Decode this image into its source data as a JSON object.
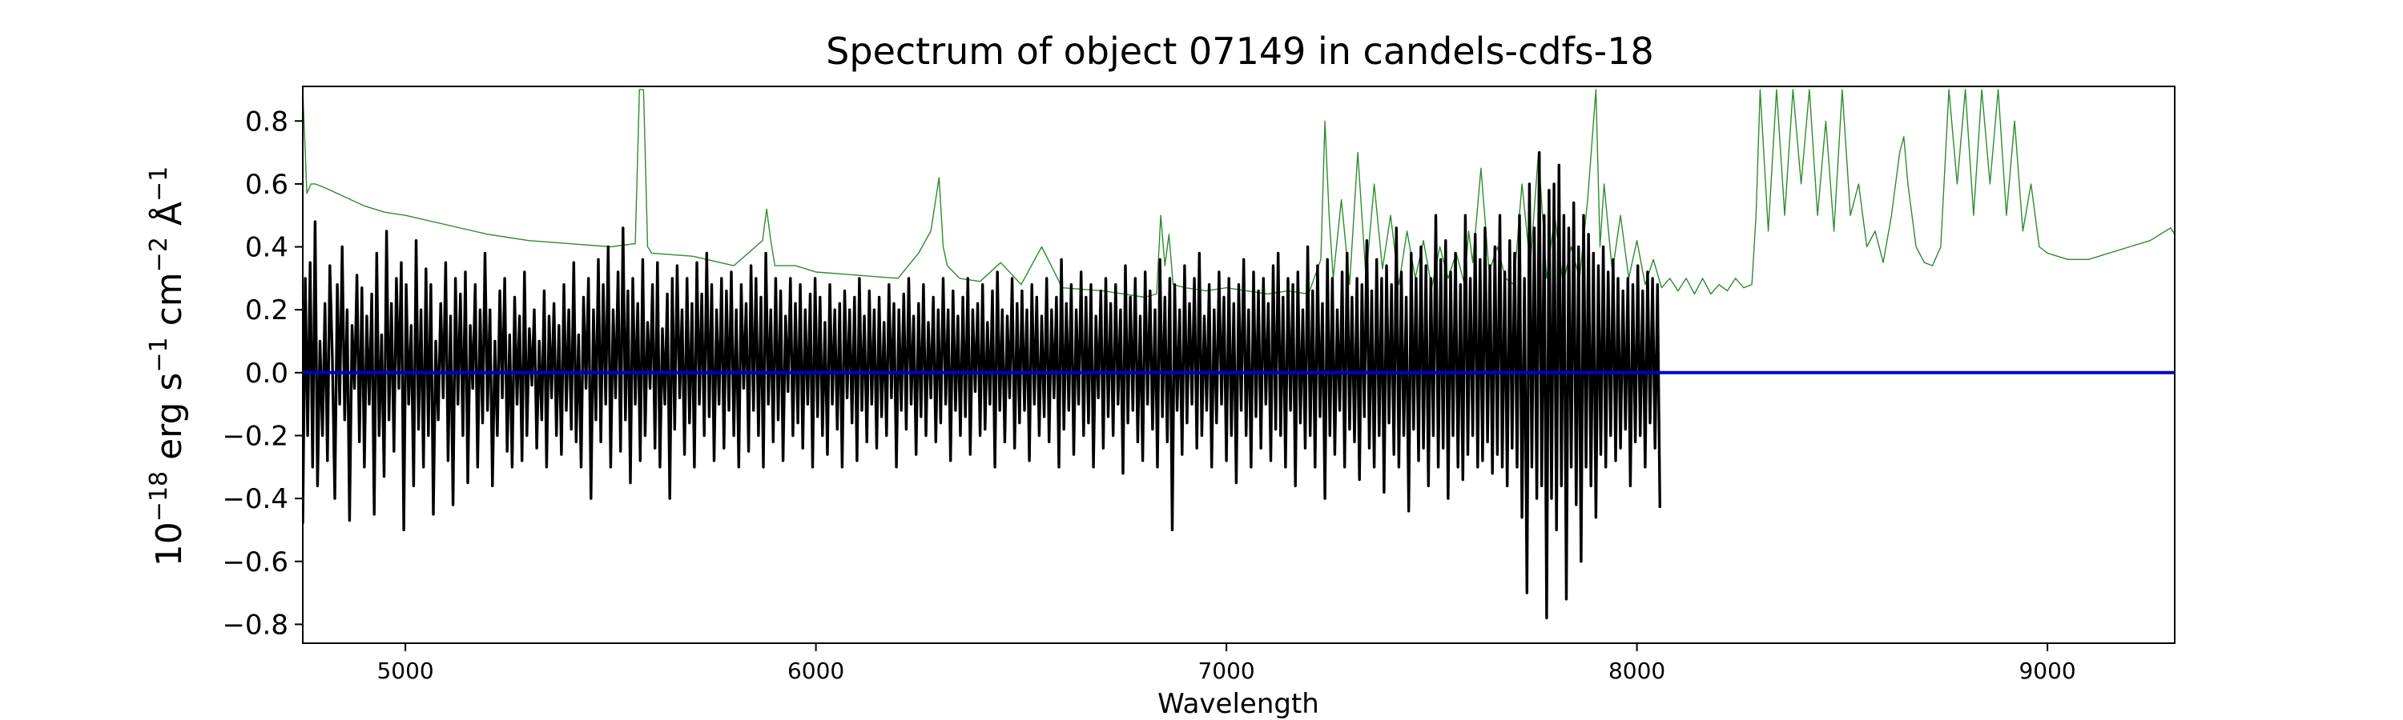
{
  "chart_data": {
    "type": "line",
    "title": "Spectrum of object 07149 in candels-cdfs-18",
    "xlabel": "Wavelength",
    "ylabel": {
      "base": "10",
      "exp": "−18",
      "unit1": " erg s",
      "unit1_exp": "−1",
      "unit2": " cm",
      "unit2_exp": "−2",
      "unit3": " Å",
      "unit3_exp": "−1"
    },
    "xlim": [
      4750,
      9310
    ],
    "ylim": [
      -0.86,
      0.91
    ],
    "x_ticks": [
      5000,
      6000,
      7000,
      8000,
      9000
    ],
    "x_tick_labels": [
      "5000",
      "6000",
      "7000",
      "8000",
      "9000"
    ],
    "y_ticks": [
      -0.8,
      -0.6,
      -0.4,
      -0.2,
      0.0,
      0.2,
      0.4,
      0.6,
      0.8
    ],
    "y_tick_labels": [
      "−0.8",
      "−0.6",
      "−0.4",
      "−0.2",
      "0.0",
      "0.2",
      "0.4",
      "0.6",
      "0.8"
    ],
    "grid": false,
    "colors": {
      "flux": "#000000",
      "error": "#2e8b2e",
      "zero": "#0000cc"
    },
    "series": [
      {
        "role": "flux",
        "x_start": 4750,
        "x_step": 6,
        "values": [
          -0.48,
          0.3,
          -0.2,
          0.35,
          -0.3,
          0.48,
          -0.36,
          0.1,
          -0.2,
          0.22,
          -0.28,
          0.34,
          0.05,
          -0.4,
          0.28,
          -0.1,
          0.4,
          -0.15,
          0.2,
          -0.47,
          0.15,
          -0.05,
          0.31,
          -0.22,
          0.27,
          -0.3,
          0.18,
          -0.1,
          0.25,
          -0.45,
          0.38,
          -0.2,
          0.12,
          -0.33,
          0.45,
          -0.15,
          0.22,
          -0.25,
          0.3,
          -0.05,
          0.35,
          -0.5,
          0.28,
          -0.1,
          0.15,
          -0.36,
          0.42,
          -0.18,
          0.2,
          -0.3,
          0.33,
          -0.2,
          0.28,
          -0.45,
          0.1,
          -0.15,
          0.22,
          -0.08,
          0.35,
          -0.28,
          0.18,
          -0.42,
          0.3,
          -0.1,
          0.25,
          -0.2,
          0.32,
          -0.35,
          0.15,
          -0.05,
          0.28,
          -0.3,
          0.2,
          -0.16,
          0.38,
          -0.12,
          0.2,
          -0.36,
          0.1,
          -0.2,
          0.26,
          -0.08,
          0.3,
          -0.25,
          0.12,
          -0.3,
          0.24,
          -0.1,
          0.18,
          -0.28,
          0.32,
          -0.2,
          0.14,
          -0.04,
          0.2,
          -0.24,
          0.1,
          -0.15,
          0.26,
          -0.3,
          0.18,
          -0.08,
          0.22,
          -0.2,
          0.15,
          -0.26,
          0.28,
          -0.12,
          0.2,
          -0.18,
          0.35,
          -0.22,
          0.12,
          -0.3,
          0.24,
          -0.05,
          0.3,
          -0.4,
          0.2,
          -0.15,
          0.36,
          -0.22,
          0.28,
          -0.1,
          0.4,
          -0.3,
          0.2,
          -0.08,
          0.32,
          -0.25,
          0.46,
          -0.15,
          0.26,
          -0.35,
          0.3,
          -0.1,
          0.22,
          -0.28,
          0.36,
          -0.2,
          0.16,
          -0.05,
          0.28,
          -0.24,
          0.35,
          -0.3,
          0.14,
          -0.1,
          0.25,
          -0.4,
          0.3,
          -0.18,
          0.34,
          -0.08,
          0.2,
          -0.26,
          0.3,
          -0.16,
          0.22,
          -0.3,
          0.35,
          -0.1,
          0.25,
          -0.2,
          0.38,
          -0.14,
          0.28,
          -0.28,
          0.2,
          -0.1,
          0.3,
          -0.24,
          0.26,
          -0.12,
          0.32,
          -0.2,
          0.2,
          -0.3,
          0.28,
          -0.05,
          0.22,
          -0.25,
          0.34,
          -0.12,
          0.3,
          -0.2,
          0.24,
          -0.3,
          0.38,
          -0.1,
          0.2,
          -0.22,
          0.3,
          -0.15,
          0.26,
          -0.28,
          0.18,
          -0.06,
          0.3,
          -0.2,
          0.22,
          -0.16,
          0.28,
          -0.24,
          0.2,
          -0.1,
          0.25,
          -0.3,
          0.3,
          -0.14,
          0.24,
          -0.2,
          0.16,
          -0.26,
          0.28,
          -0.1,
          0.2,
          -0.18,
          0.22,
          -0.3,
          0.26,
          -0.08,
          0.2,
          -0.16,
          0.24,
          -0.28,
          0.3,
          -0.12,
          0.18,
          -0.22,
          0.26,
          -0.1,
          0.2,
          -0.24,
          0.24,
          -0.14,
          0.16,
          -0.2,
          0.28,
          -0.08,
          0.22,
          -0.3,
          0.2,
          -0.12,
          0.25,
          -0.18,
          0.3,
          -0.1,
          0.18,
          -0.26,
          0.22,
          -0.14,
          0.28,
          -0.2,
          0.16,
          -0.08,
          0.24,
          -0.22,
          0.2,
          -0.16,
          0.3,
          -0.1,
          0.2,
          -0.28,
          0.26,
          -0.12,
          0.18,
          -0.2,
          0.24,
          -0.14,
          0.3,
          -0.26,
          0.2,
          -0.06,
          0.22,
          -0.2,
          0.28,
          -0.18,
          0.16,
          -0.1,
          0.26,
          -0.3,
          0.32,
          -0.12,
          0.2,
          -0.22,
          0.18,
          -0.08,
          0.3,
          -0.24,
          0.22,
          -0.16,
          0.26,
          -0.12,
          0.2,
          -0.28,
          0.28,
          -0.1,
          0.24,
          -0.2,
          0.18,
          -0.14,
          0.3,
          -0.22,
          0.2,
          -0.08,
          0.24,
          -0.3,
          0.36,
          -0.18,
          0.22,
          -0.12,
          0.28,
          -0.26,
          0.2,
          -0.1,
          0.32,
          -0.2,
          0.24,
          -0.16,
          0.28,
          -0.3,
          0.18,
          -0.08,
          0.26,
          -0.24,
          0.3,
          -0.14,
          0.22,
          -0.2,
          0.28,
          -0.1,
          0.2,
          -0.32,
          0.34,
          -0.16,
          0.24,
          -0.12,
          0.3,
          -0.22,
          0.18,
          -0.28,
          0.32,
          -0.1,
          0.26,
          -0.18,
          0.2,
          -0.3,
          0.36,
          -0.14,
          0.24,
          -0.22,
          0.3,
          -0.5,
          0.28,
          -0.12,
          0.2,
          -0.26,
          0.34,
          -0.16,
          0.22,
          -0.1,
          0.3,
          -0.24,
          0.38,
          -0.2,
          0.18,
          -0.12,
          0.28,
          -0.3,
          0.2,
          -0.16,
          0.32,
          -0.1,
          0.24,
          -0.28,
          0.3,
          -0.2,
          0.22,
          -0.35,
          0.28,
          -0.12,
          0.36,
          -0.2,
          0.2,
          -0.3,
          0.32,
          -0.14,
          0.26,
          -0.24,
          0.3,
          -0.1,
          0.22,
          -0.28,
          0.34,
          -0.18,
          0.38,
          -0.2,
          0.24,
          -0.3,
          0.3,
          -0.12,
          0.28,
          -0.36,
          0.32,
          -0.16,
          0.2,
          -0.24,
          0.4,
          -0.2,
          0.26,
          -0.3,
          0.34,
          -0.14,
          0.22,
          -0.4,
          0.36,
          -0.2,
          0.3,
          -0.26,
          0.2,
          -0.12,
          0.32,
          -0.3,
          0.38,
          -0.18,
          0.24,
          -0.22,
          0.3,
          -0.34,
          0.28,
          -0.14,
          0.42,
          -0.24,
          0.26,
          -0.3,
          0.36,
          -0.2,
          0.3,
          -0.38,
          0.34,
          -0.16,
          0.28,
          -0.26,
          0.46,
          -0.3,
          0.32,
          -0.2,
          0.24,
          -0.44,
          0.38,
          -0.18,
          0.3,
          -0.28,
          0.4,
          -0.24,
          0.34,
          -0.36,
          0.3,
          -0.2,
          0.5,
          -0.3,
          0.36,
          -0.24,
          0.42,
          -0.4,
          0.32,
          -0.2,
          0.38,
          -0.3,
          0.28,
          -0.34,
          0.5,
          -0.26,
          0.3,
          -0.2,
          0.44,
          -0.3,
          0.36,
          -0.28,
          0.46,
          -0.22,
          0.34,
          -0.32,
          0.4,
          -0.26,
          0.5,
          -0.3,
          0.32,
          -0.36,
          0.42,
          -0.24,
          0.38,
          -0.3,
          0.5,
          -0.46,
          0.3,
          -0.7,
          0.6,
          -0.3,
          0.46,
          -0.4,
          0.7,
          -0.36,
          0.5,
          -0.78,
          0.58,
          -0.4,
          0.6,
          -0.5,
          0.66,
          -0.36,
          0.5,
          -0.72,
          0.46,
          -0.3,
          0.54,
          -0.42,
          0.4,
          -0.6,
          0.5,
          -0.3,
          0.44,
          -0.36,
          0.38,
          -0.46,
          0.34,
          -0.26,
          0.4,
          -0.3,
          0.32,
          -0.2,
          0.36,
          -0.28,
          0.3,
          -0.24,
          0.26,
          -0.18,
          0.3,
          -0.36,
          0.28,
          -0.22,
          0.34,
          -0.2,
          0.26,
          -0.3,
          0.32,
          -0.16,
          0.3,
          -0.24,
          0.28,
          -0.43
        ]
      },
      {
        "role": "error",
        "x": [
          4750,
          4760,
          4770,
          4780,
          4800,
          4850,
          4900,
          4950,
          5000,
          5100,
          5200,
          5300,
          5400,
          5500,
          5560,
          5570,
          5580,
          5590,
          5600,
          5700,
          5800,
          5870,
          5880,
          5890,
          5900,
          5950,
          6000,
          6100,
          6200,
          6250,
          6280,
          6300,
          6310,
          6320,
          6350,
          6400,
          6450,
          6500,
          6550,
          6600,
          6700,
          6800,
          6830,
          6840,
          6850,
          6860,
          6870,
          6900,
          6950,
          7000,
          7100,
          7150,
          7200,
          7230,
          7240,
          7250,
          7260,
          7280,
          7300,
          7320,
          7340,
          7360,
          7380,
          7400,
          7420,
          7440,
          7460,
          7480,
          7500,
          7520,
          7540,
          7560,
          7580,
          7590,
          7600,
          7620,
          7640,
          7660,
          7680,
          7700,
          7720,
          7740,
          7760,
          7780,
          7800,
          7820,
          7840,
          7860,
          7880,
          7900,
          7910,
          7920,
          7940,
          7960,
          7980,
          8000,
          8020,
          8040,
          8060,
          8080,
          8100,
          8120,
          8140,
          8160,
          8180,
          8200,
          8220,
          8240,
          8260,
          8280,
          8290,
          8300,
          8320,
          8340,
          8360,
          8380,
          8400,
          8420,
          8440,
          8460,
          8480,
          8500,
          8520,
          8540,
          8560,
          8580,
          8600,
          8620,
          8640,
          8650,
          8660,
          8680,
          8700,
          8720,
          8740,
          8760,
          8780,
          8800,
          8820,
          8840,
          8860,
          8880,
          8900,
          8920,
          8940,
          8960,
          8980,
          9000,
          9050,
          9100,
          9150,
          9200,
          9250,
          9300,
          9310
        ],
        "values": [
          0.9,
          0.57,
          0.6,
          0.6,
          0.59,
          0.56,
          0.53,
          0.51,
          0.5,
          0.47,
          0.44,
          0.42,
          0.41,
          0.4,
          0.41,
          0.9,
          0.9,
          0.4,
          0.38,
          0.37,
          0.34,
          0.42,
          0.52,
          0.42,
          0.34,
          0.34,
          0.32,
          0.31,
          0.3,
          0.38,
          0.45,
          0.62,
          0.4,
          0.34,
          0.3,
          0.29,
          0.35,
          0.28,
          0.4,
          0.27,
          0.26,
          0.24,
          0.25,
          0.5,
          0.34,
          0.44,
          0.28,
          0.27,
          0.26,
          0.27,
          0.25,
          0.26,
          0.25,
          0.36,
          0.8,
          0.5,
          0.3,
          0.55,
          0.28,
          0.7,
          0.3,
          0.6,
          0.33,
          0.5,
          0.28,
          0.45,
          0.3,
          0.42,
          0.27,
          0.4,
          0.3,
          0.38,
          0.28,
          0.45,
          0.35,
          0.65,
          0.32,
          0.4,
          0.3,
          0.28,
          0.6,
          0.34,
          0.7,
          0.3,
          0.5,
          0.28,
          0.4,
          0.3,
          0.55,
          0.9,
          0.4,
          0.6,
          0.32,
          0.5,
          0.3,
          0.42,
          0.28,
          0.36,
          0.27,
          0.3,
          0.26,
          0.3,
          0.25,
          0.3,
          0.25,
          0.28,
          0.26,
          0.3,
          0.27,
          0.28,
          0.5,
          0.9,
          0.45,
          0.9,
          0.5,
          0.9,
          0.6,
          0.9,
          0.5,
          0.8,
          0.45,
          0.9,
          0.5,
          0.6,
          0.4,
          0.45,
          0.35,
          0.5,
          0.7,
          0.75,
          0.6,
          0.4,
          0.35,
          0.34,
          0.4,
          0.9,
          0.6,
          0.9,
          0.5,
          0.9,
          0.6,
          0.9,
          0.5,
          0.8,
          0.45,
          0.6,
          0.4,
          0.38,
          0.36,
          0.36,
          0.38,
          0.4,
          0.42,
          0.46,
          0.44
        ]
      },
      {
        "role": "zero",
        "x": [
          4750,
          9310
        ],
        "values": [
          0,
          0
        ]
      }
    ]
  }
}
